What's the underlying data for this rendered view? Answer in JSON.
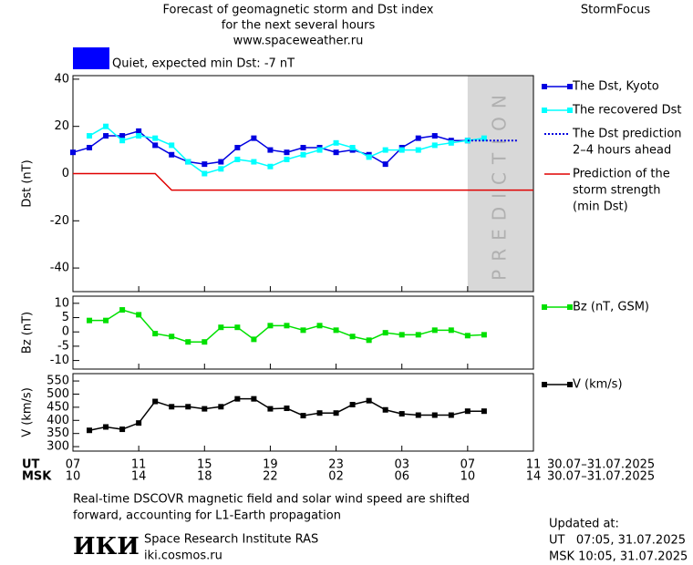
{
  "header": {
    "title": [
      "Forecast of geomagnetic storm and Dst index",
      "for the next several hours",
      "www.spaceweather.ru"
    ],
    "brand": "StormFocus"
  },
  "status": {
    "text": "Quiet, expected min Dst: -7 nT",
    "color": "#0000ff"
  },
  "chart_data": [
    {
      "type": "line",
      "ylabel": "Dst (nT)",
      "ylim": [
        -50,
        41.5
      ],
      "yticks": [
        40,
        20,
        0,
        -20,
        -40
      ],
      "xlim": [
        0,
        28
      ],
      "x": [
        0,
        1,
        2,
        3,
        4,
        5,
        6,
        7,
        8,
        9,
        10,
        11,
        12,
        13,
        14,
        15,
        16,
        17,
        18,
        19,
        20,
        21,
        22,
        23,
        24,
        25
      ],
      "shade": {
        "x": [
          24,
          28
        ],
        "label": "PREDICTION",
        "color": "#d8d8d8"
      },
      "series": [
        {
          "name": "The Dst, Kyoto",
          "color": "#0000e0",
          "marker": true,
          "values": [
            9,
            11,
            16,
            16,
            18,
            12,
            8,
            5,
            4,
            5,
            11,
            15,
            10,
            9,
            11,
            11,
            9,
            10,
            8,
            4,
            11,
            15,
            16,
            14,
            14,
            null
          ]
        },
        {
          "name": "The recovered Dst",
          "color": "#00ffff",
          "marker": true,
          "values": [
            null,
            16,
            20,
            14,
            16,
            15,
            12,
            5,
            0,
            2,
            6,
            5,
            3,
            6,
            8,
            10,
            13,
            11,
            7,
            10,
            10,
            10,
            12,
            13,
            14,
            15
          ]
        },
        {
          "name": [
            "The Dst prediction",
            "2–4 hours ahead"
          ],
          "color": "#0000e0",
          "dash": true,
          "x": [
            24,
            27
          ],
          "values": [
            14,
            14
          ]
        },
        {
          "name": [
            "Prediction of the",
            "storm strength",
            "(min Dst)"
          ],
          "color": "#e00000",
          "x": [
            0,
            5,
            6,
            28
          ],
          "values": [
            0,
            0,
            -7,
            -7
          ]
        }
      ]
    },
    {
      "type": "line",
      "ylabel": "Bz (nT)",
      "ylim": [
        -13,
        12.5
      ],
      "yticks": [
        10,
        5,
        0,
        -5,
        -10
      ],
      "xlim": [
        0,
        28
      ],
      "x": [
        0,
        1,
        2,
        3,
        4,
        5,
        6,
        7,
        8,
        9,
        10,
        11,
        12,
        13,
        14,
        15,
        16,
        17,
        18,
        19,
        20,
        21,
        22,
        23,
        24,
        25
      ],
      "series": [
        {
          "name": "Bz (nT, GSM)",
          "color": "#00e000",
          "marker": true,
          "values": [
            null,
            4,
            4,
            7.7,
            6,
            -0.6,
            -1.6,
            -3.5,
            -3.5,
            1.6,
            1.6,
            -2.6,
            2.2,
            2.2,
            0.6,
            2.2,
            0.6,
            -1.6,
            -2.9,
            -0.3,
            -1,
            -1,
            0.6,
            0.6,
            -1.3,
            -1
          ]
        }
      ]
    },
    {
      "type": "line",
      "ylabel": "V (km/s)",
      "ylim": [
        283,
        578
      ],
      "yticks": [
        550,
        500,
        450,
        400,
        350,
        300
      ],
      "xlim": [
        0,
        28
      ],
      "x": [
        0,
        1,
        2,
        3,
        4,
        5,
        6,
        7,
        8,
        9,
        10,
        11,
        12,
        13,
        14,
        15,
        16,
        17,
        18,
        19,
        20,
        21,
        22,
        23,
        24,
        25
      ],
      "xlabel": "UT",
      "xlabel2": "MSK",
      "date_range": "30.07–31.07.2025",
      "xticks": [
        {
          "value": 0,
          "label": "07"
        },
        {
          "value": 4,
          "label": "11"
        },
        {
          "value": 8,
          "label": "15"
        },
        {
          "value": 12,
          "label": "19"
        },
        {
          "value": 16,
          "label": "23"
        },
        {
          "value": 20,
          "label": "03"
        },
        {
          "value": 24,
          "label": "07"
        },
        {
          "value": 28,
          "label": "11"
        }
      ],
      "xticks2": [
        {
          "value": 0,
          "label": "10"
        },
        {
          "value": 4,
          "label": "14"
        },
        {
          "value": 8,
          "label": "18"
        },
        {
          "value": 12,
          "label": "22"
        },
        {
          "value": 16,
          "label": "02"
        },
        {
          "value": 20,
          "label": "06"
        },
        {
          "value": 24,
          "label": "10"
        },
        {
          "value": 28,
          "label": "14"
        }
      ],
      "series": [
        {
          "name": "V (km/s)",
          "color": "#000000",
          "marker": true,
          "values": [
            null,
            362,
            375,
            366,
            390,
            472,
            452,
            452,
            444,
            452,
            482,
            482,
            444,
            446,
            418,
            428,
            428,
            460,
            475,
            440,
            425,
            420,
            420,
            420,
            435,
            435
          ]
        }
      ]
    }
  ],
  "footnote": [
    "Real-time DSCOVR magnetic field and solar wind speed are shifted",
    "forward, accounting for L1-Earth propagation"
  ],
  "institute": {
    "logo": "ИКИ",
    "name": "Space Research Institute RAS",
    "url": "iki.cosmos.ru"
  },
  "updated": {
    "label": "Updated at:",
    "ut": "UT   07:05, 31.07.2025",
    "msk": "MSK 10:05, 31.07.2025"
  }
}
